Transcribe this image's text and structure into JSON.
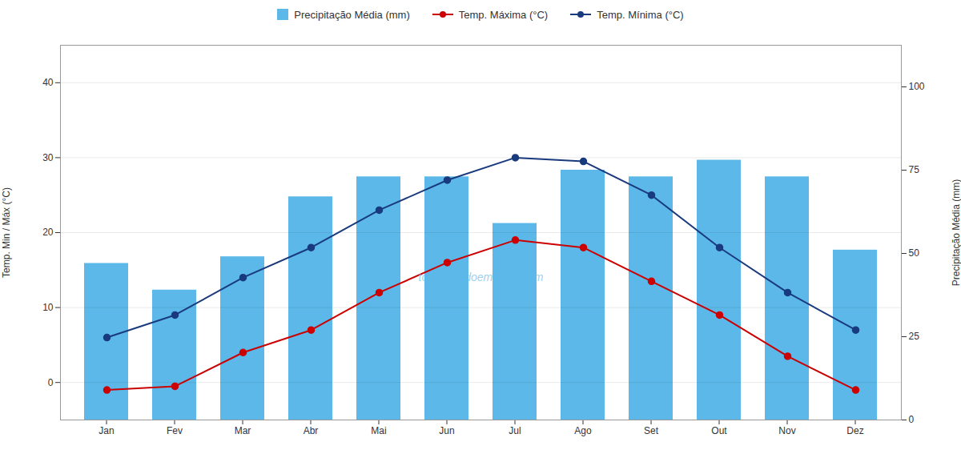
{
  "chart_data": {
    "type": "bar",
    "categories": [
      "Jan",
      "Fev",
      "Mar",
      "Abr",
      "Mai",
      "Jun",
      "Jul",
      "Ago",
      "Set",
      "Out",
      "Nov",
      "Dez"
    ],
    "series": [
      {
        "name": "Precipitação Média (mm)",
        "type": "bar",
        "axis": "y2",
        "color": "#5BB8E8",
        "values": [
          47,
          39,
          49,
          67,
          73,
          73,
          59,
          75,
          73,
          78,
          73,
          51
        ]
      },
      {
        "name": "Temp. Máxima (°C)",
        "type": "line",
        "color": "#CC0000",
        "marker": "circle",
        "values": [
          -1,
          -0.5,
          4,
          7,
          12,
          16,
          19,
          18,
          13.5,
          9,
          3.5,
          -1
        ]
      },
      {
        "name": "Temp. Mínima (°C)",
        "type": "line",
        "color": "#1A3A7E",
        "marker": "circle",
        "values": [
          6,
          9,
          14,
          18,
          23,
          27,
          30,
          29.5,
          25,
          18,
          12,
          7
        ]
      }
    ],
    "ylabel": "Temp. Min / Máx (°C)",
    "y2label": "Precipitação Média (mm)",
    "ylim": [
      -5,
      45
    ],
    "yticks": [
      0,
      10,
      20,
      30,
      40
    ],
    "y2lim": [
      0,
      112.5
    ],
    "y2ticks": [
      0,
      25,
      50,
      75,
      100
    ],
    "grid": true,
    "legend": "top",
    "annotations": [
      {
        "text": "topensandoemviajar.com",
        "color": "#5BB8E8"
      }
    ]
  }
}
